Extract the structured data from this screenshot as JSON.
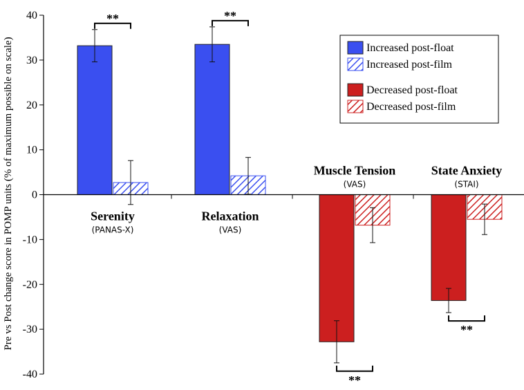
{
  "chart_data": {
    "type": "bar",
    "title": "",
    "ylabel": "Pre vs Post change score in POMP units (% of maximum possible on scale)",
    "xlabel": "",
    "ylim": [
      -40,
      40
    ],
    "yticks": [
      40,
      30,
      20,
      10,
      0,
      -10,
      -20,
      -30,
      -40
    ],
    "grid": false,
    "legend_position": "top-right",
    "categories": [
      {
        "name": "Serenity",
        "sub": "(PANAS-X)",
        "label_side": "below-axis"
      },
      {
        "name": "Relaxation",
        "sub": "(VAS)",
        "label_side": "below-axis"
      },
      {
        "name": "Muscle Tension",
        "sub": "(VAS)",
        "label_side": "above-axis"
      },
      {
        "name": "State Anxiety",
        "sub": "(STAI)",
        "label_side": "above-axis"
      }
    ],
    "series": [
      {
        "name": "Post-float",
        "values": [
          33.2,
          33.5,
          -32.8,
          -23.6
        ],
        "errors": [
          3.6,
          3.9,
          4.7,
          2.7
        ]
      },
      {
        "name": "Post-film",
        "values": [
          2.7,
          4.2,
          -6.8,
          -5.5
        ],
        "errors": [
          4.9,
          4.1,
          3.9,
          3.4
        ]
      }
    ],
    "significance": [
      "**",
      "**",
      "**",
      "**"
    ],
    "legend": [
      {
        "label": "Increased post-float",
        "color": "#3a4ff0",
        "style": "solid"
      },
      {
        "label": "Increased post-film",
        "color": "#3a4ff0",
        "style": "hatched"
      },
      {
        "label": "Decreased post-float",
        "color": "#cc1f1f",
        "style": "solid"
      },
      {
        "label": "Decreased post-film",
        "color": "#cc1f1f",
        "style": "hatched"
      }
    ],
    "colors": {
      "increased": "#3a4ff0",
      "decreased": "#cc1f1f"
    }
  }
}
